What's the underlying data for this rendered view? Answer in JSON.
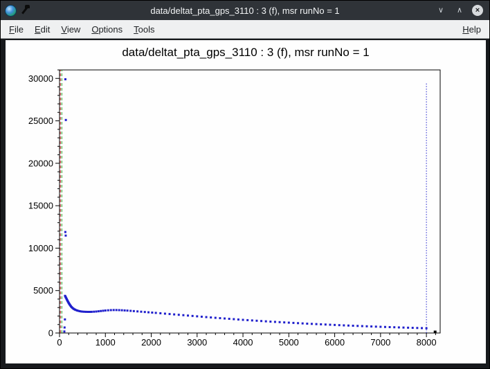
{
  "window": {
    "title": "data/deltat_pta_gps_3110 : 3 (f), msr runNo = 1",
    "controls": {
      "minimize_glyph": "∨",
      "maximize_glyph": "∧",
      "close_glyph": "×"
    }
  },
  "menubar": {
    "items": [
      "File",
      "Edit",
      "View",
      "Options",
      "Tools"
    ],
    "right_items": [
      "Help"
    ]
  },
  "chart_data": {
    "type": "scatter",
    "title": "data/deltat_pta_gps_3110 : 3 (f), msr runNo = 1",
    "xlabel": "",
    "ylabel": "",
    "xlim": [
      0,
      8300
    ],
    "ylim": [
      0,
      31000
    ],
    "xticks": [
      0,
      1000,
      2000,
      3000,
      4000,
      5000,
      6000,
      7000,
      8000
    ],
    "yticks": [
      0,
      5000,
      10000,
      15000,
      20000,
      25000,
      30000
    ],
    "grid": false,
    "legend": "none",
    "marker_color": "#2020cc",
    "reference_lines": [
      {
        "name": "t0-line-red",
        "x": 18,
        "color": "#cc2020",
        "style": "dashed",
        "y0": 0,
        "y1": 31000
      },
      {
        "name": "t0-line-green",
        "x": 50,
        "color": "#1f9e1f",
        "style": "dashed",
        "y0": 0,
        "y1": 31000
      },
      {
        "name": "data-end-line",
        "x": 8000,
        "color": "#2020cc",
        "style": "dotted",
        "y0": 0,
        "y1": 29500
      }
    ],
    "end_marker": {
      "x": 8190,
      "y": 120,
      "color": "#000000"
    },
    "series": [
      {
        "name": "histogram",
        "color": "#2020cc",
        "points": [
          [
            105,
            180
          ],
          [
            110,
            650
          ],
          [
            118,
            1600
          ],
          [
            128,
            29900
          ],
          [
            138,
            25100
          ],
          [
            127,
            11900
          ],
          [
            135,
            11480
          ],
          [
            120,
            4380
          ],
          [
            128,
            4300
          ],
          [
            135,
            4220
          ],
          [
            142,
            4150
          ],
          [
            150,
            4060
          ],
          [
            158,
            3980
          ],
          [
            165,
            3900
          ],
          [
            172,
            3820
          ],
          [
            180,
            3740
          ],
          [
            188,
            3660
          ],
          [
            196,
            3580
          ],
          [
            204,
            3510
          ],
          [
            212,
            3440
          ],
          [
            220,
            3370
          ],
          [
            230,
            3290
          ],
          [
            240,
            3210
          ],
          [
            250,
            3140
          ],
          [
            262,
            3060
          ],
          [
            275,
            2990
          ],
          [
            290,
            2920
          ],
          [
            305,
            2860
          ],
          [
            320,
            2800
          ],
          [
            340,
            2750
          ],
          [
            360,
            2700
          ],
          [
            385,
            2650
          ],
          [
            410,
            2610
          ],
          [
            440,
            2570
          ],
          [
            470,
            2540
          ],
          [
            500,
            2520
          ],
          [
            540,
            2505
          ],
          [
            580,
            2495
          ],
          [
            620,
            2490
          ],
          [
            660,
            2490
          ],
          [
            700,
            2495
          ],
          [
            750,
            2510
          ],
          [
            800,
            2530
          ],
          [
            850,
            2560
          ],
          [
            900,
            2590
          ],
          [
            950,
            2620
          ],
          [
            1000,
            2650
          ],
          [
            1060,
            2675
          ],
          [
            1120,
            2695
          ],
          [
            1180,
            2705
          ],
          [
            1240,
            2705
          ],
          [
            1300,
            2695
          ],
          [
            1360,
            2680
          ],
          [
            1420,
            2660
          ],
          [
            1480,
            2640
          ],
          [
            1550,
            2610
          ],
          [
            1620,
            2580
          ],
          [
            1700,
            2545
          ],
          [
            1780,
            2510
          ],
          [
            1860,
            2475
          ],
          [
            1940,
            2440
          ],
          [
            2020,
            2405
          ],
          [
            2100,
            2370
          ],
          [
            2200,
            2325
          ],
          [
            2300,
            2280
          ],
          [
            2400,
            2235
          ],
          [
            2500,
            2190
          ],
          [
            2600,
            2145
          ],
          [
            2700,
            2100
          ],
          [
            2800,
            2055
          ],
          [
            2900,
            2010
          ],
          [
            3000,
            1965
          ],
          [
            3100,
            1920
          ],
          [
            3200,
            1875
          ],
          [
            3300,
            1832
          ],
          [
            3400,
            1790
          ],
          [
            3500,
            1750
          ],
          [
            3600,
            1710
          ],
          [
            3700,
            1670
          ],
          [
            3800,
            1630
          ],
          [
            3900,
            1590
          ],
          [
            4000,
            1550
          ],
          [
            4100,
            1515
          ],
          [
            4200,
            1480
          ],
          [
            4300,
            1445
          ],
          [
            4400,
            1410
          ],
          [
            4500,
            1375
          ],
          [
            4600,
            1340
          ],
          [
            4700,
            1310
          ],
          [
            4800,
            1280
          ],
          [
            4900,
            1250
          ],
          [
            5000,
            1220
          ],
          [
            5100,
            1190
          ],
          [
            5200,
            1160
          ],
          [
            5300,
            1130
          ],
          [
            5400,
            1100
          ],
          [
            5500,
            1075
          ],
          [
            5600,
            1050
          ],
          [
            5700,
            1025
          ],
          [
            5800,
            1000
          ],
          [
            5900,
            975
          ],
          [
            6000,
            950
          ],
          [
            6100,
            925
          ],
          [
            6200,
            900
          ],
          [
            6300,
            878
          ],
          [
            6400,
            856
          ],
          [
            6500,
            834
          ],
          [
            6600,
            812
          ],
          [
            6700,
            790
          ],
          [
            6800,
            770
          ],
          [
            6900,
            750
          ],
          [
            7000,
            730
          ],
          [
            7100,
            712
          ],
          [
            7200,
            694
          ],
          [
            7300,
            676
          ],
          [
            7400,
            658
          ],
          [
            7500,
            640
          ],
          [
            7600,
            624
          ],
          [
            7700,
            608
          ],
          [
            7800,
            592
          ],
          [
            7900,
            576
          ],
          [
            8000,
            560
          ]
        ]
      }
    ]
  }
}
